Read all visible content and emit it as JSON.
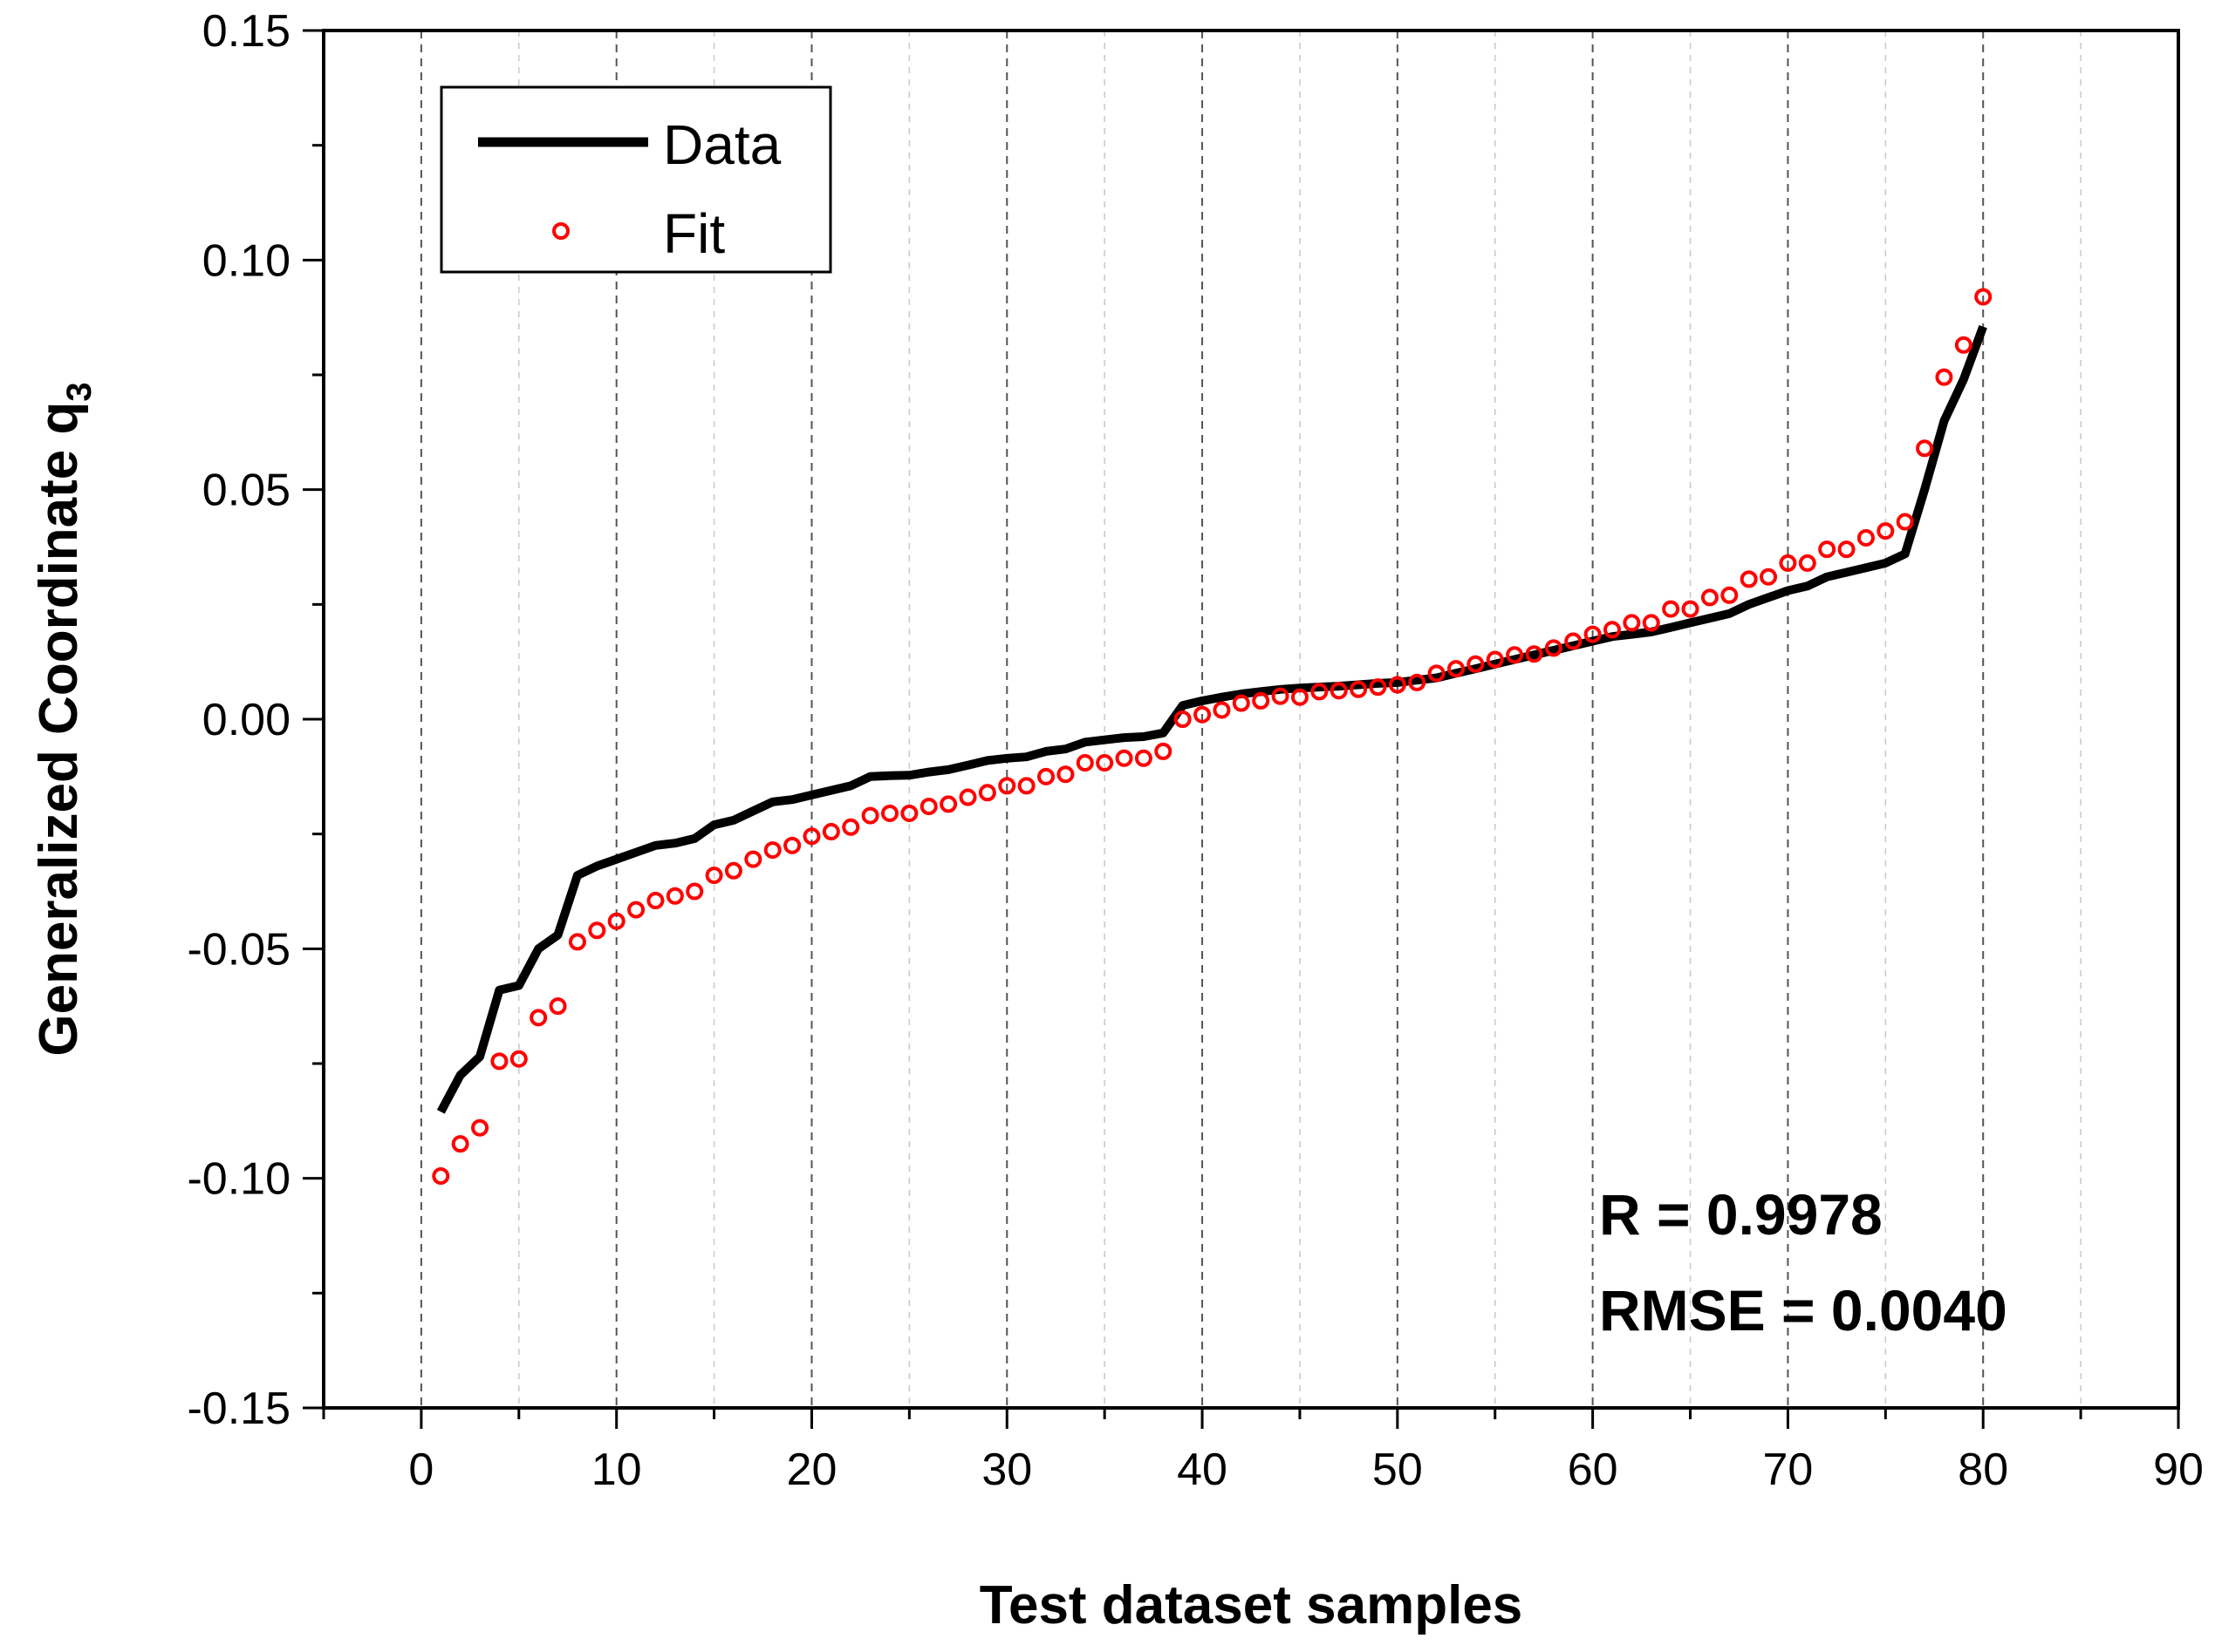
{
  "chart_data": {
    "type": "line",
    "title": "",
    "xlabel": "Test dataset samples",
    "ylabel_main": "Generalized Coordinate q",
    "ylabel_sub": "3",
    "xlim": [
      -5,
      90
    ],
    "ylim": [
      -0.15,
      0.15
    ],
    "x_ticks": [
      0,
      10,
      20,
      30,
      40,
      50,
      60,
      70,
      80,
      90
    ],
    "x_tick_labels": [
      "0",
      "10",
      "20",
      "30",
      "40",
      "50",
      "60",
      "70",
      "80",
      "90"
    ],
    "y_ticks": [
      -0.15,
      -0.1,
      -0.05,
      0.0,
      0.05,
      0.1,
      0.15
    ],
    "y_tick_labels": [
      "-0.15",
      "-0.10",
      "-0.05",
      "0.00",
      "0.05",
      "0.10",
      "0.15"
    ],
    "grid": "vertical dashed",
    "legend_position": "top-left",
    "x": [
      1,
      2,
      3,
      4,
      5,
      6,
      7,
      8,
      9,
      10,
      11,
      12,
      13,
      14,
      15,
      16,
      17,
      18,
      19,
      20,
      21,
      22,
      23,
      24,
      25,
      26,
      27,
      28,
      29,
      30,
      31,
      32,
      33,
      34,
      35,
      36,
      37,
      38,
      39,
      40,
      41,
      42,
      43,
      44,
      45,
      46,
      47,
      48,
      49,
      50,
      51,
      52,
      53,
      54,
      55,
      56,
      57,
      58,
      59,
      60,
      61,
      62,
      63,
      64,
      65,
      66,
      67,
      68,
      69,
      70,
      71,
      72,
      73,
      74,
      75,
      76,
      77,
      78,
      79,
      80
    ],
    "series": [
      {
        "name": "Data",
        "style": "line",
        "color": "#000000",
        "values": [
          -0.0855,
          -0.0775,
          -0.0735,
          -0.059,
          -0.058,
          -0.05,
          -0.047,
          -0.034,
          -0.032,
          -0.0305,
          -0.029,
          -0.0275,
          -0.027,
          -0.026,
          -0.023,
          -0.022,
          -0.02,
          -0.018,
          -0.0175,
          -0.0165,
          -0.0155,
          -0.0145,
          -0.0125,
          -0.0123,
          -0.0122,
          -0.0115,
          -0.011,
          -0.01,
          -0.009,
          -0.0085,
          -0.0082,
          -0.007,
          -0.0065,
          -0.005,
          -0.0045,
          -0.004,
          -0.0038,
          -0.003,
          0.003,
          0.004,
          0.0048,
          0.0055,
          0.006,
          0.0065,
          0.0068,
          0.007,
          0.0072,
          0.0075,
          0.0078,
          0.008,
          0.0085,
          0.009,
          0.01,
          0.011,
          0.012,
          0.013,
          0.014,
          0.015,
          0.016,
          0.017,
          0.018,
          0.0185,
          0.019,
          0.02,
          0.021,
          0.022,
          0.023,
          0.025,
          0.0265,
          0.028,
          0.029,
          0.031,
          0.032,
          0.033,
          0.034,
          0.036,
          0.05,
          0.065,
          0.074,
          0.0855
        ]
      },
      {
        "name": "Fit",
        "style": "open-circle",
        "color": "#ff0000",
        "values": [
          -0.0995,
          -0.0925,
          -0.089,
          -0.0745,
          -0.074,
          -0.065,
          -0.0625,
          -0.0485,
          -0.046,
          -0.044,
          -0.0415,
          -0.0395,
          -0.0385,
          -0.0375,
          -0.034,
          -0.033,
          -0.0305,
          -0.0285,
          -0.0275,
          -0.0255,
          -0.0245,
          -0.0235,
          -0.021,
          -0.0205,
          -0.0205,
          -0.019,
          -0.0185,
          -0.017,
          -0.016,
          -0.0145,
          -0.0145,
          -0.0125,
          -0.012,
          -0.0095,
          -0.0095,
          -0.0085,
          -0.0085,
          -0.007,
          0.0,
          0.001,
          0.002,
          0.0035,
          0.004,
          0.005,
          0.0048,
          0.006,
          0.0062,
          0.0065,
          0.007,
          0.0075,
          0.008,
          0.01,
          0.011,
          0.012,
          0.013,
          0.014,
          0.0142,
          0.0155,
          0.017,
          0.0185,
          0.0195,
          0.021,
          0.021,
          0.024,
          0.024,
          0.0265,
          0.027,
          0.0305,
          0.031,
          0.034,
          0.034,
          0.037,
          0.037,
          0.0395,
          0.041,
          0.043,
          0.059,
          0.0745,
          0.0815,
          0.092
        ]
      }
    ],
    "annotations": [
      "R = 0.9978",
      "RMSE = 0.0040"
    ]
  }
}
